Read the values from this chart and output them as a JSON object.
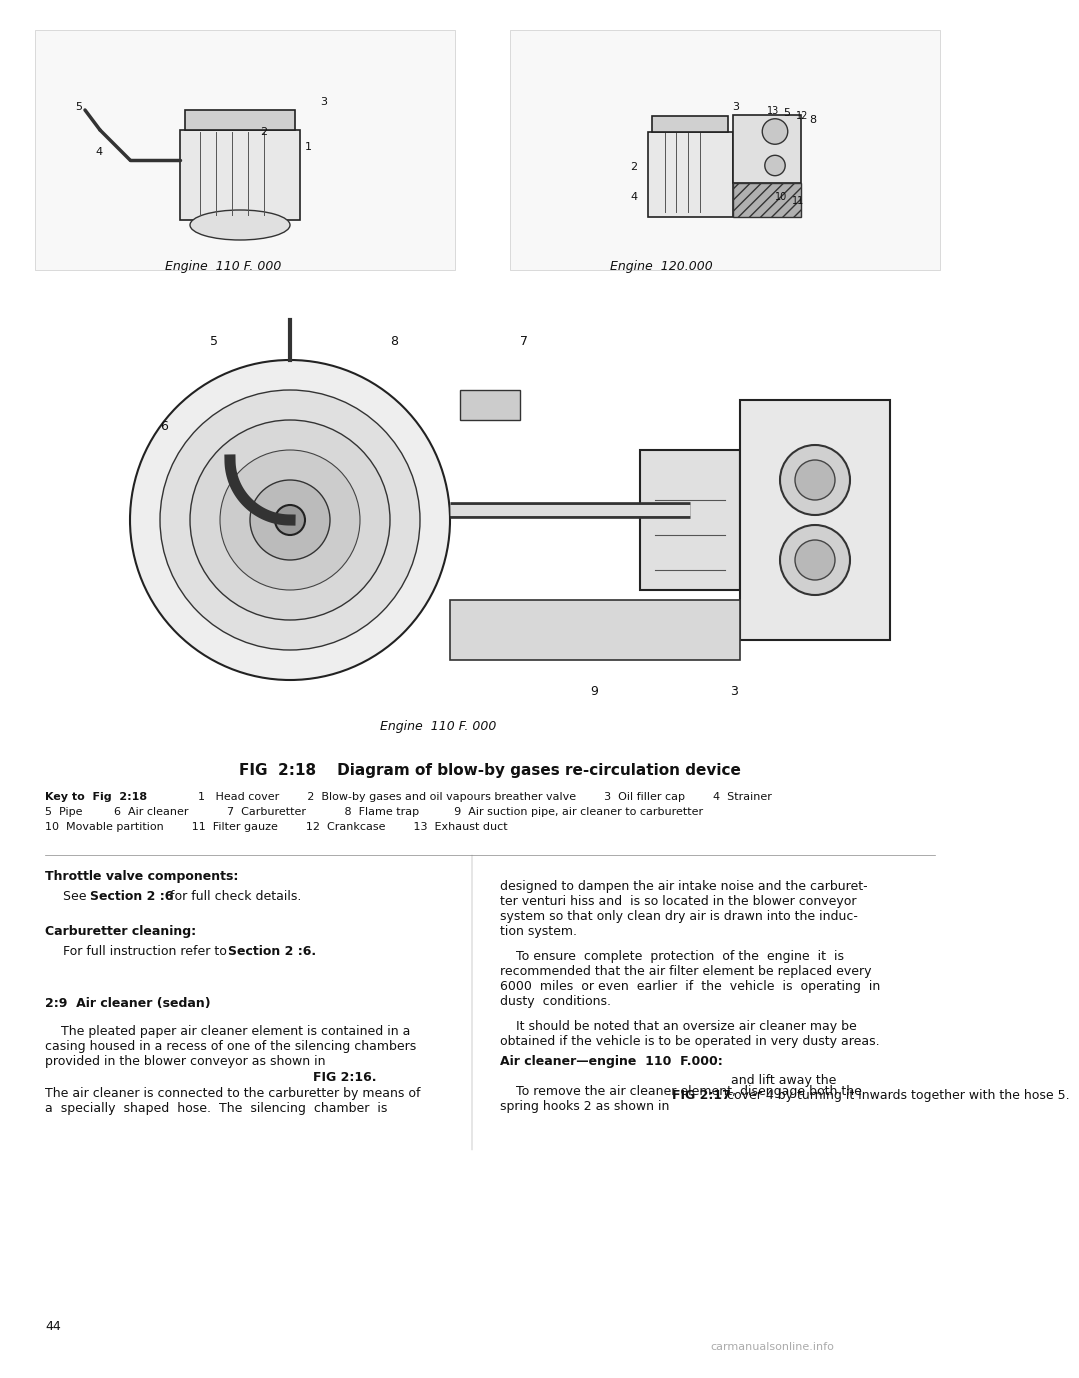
{
  "bg_color": "#ffffff",
  "page_number": "44",
  "fig_title": "FIG  2:18    Diagram of blow-by gases re-circulation device",
  "key_title": "Key to  Fig  2:18",
  "key_items_line1": "1   Head cover        2  Blow-by gases and oil vapours breather valve        3  Oil filler cap        4  Strainer",
  "key_items_line2": "5  Pipe         6  Air cleaner           7  Carburetter           8  Flame trap          9  Air suction pipe, air cleaner to carburetter",
  "key_items_line3": "10  Movable partition        11  Filter gauze        12  Crankcase        13  Exhaust duct",
  "engine_label_left": "Engine  110 F. 000",
  "engine_label_right": "Engine  120.000",
  "engine_label_bottom": "Engine  110 F. 000",
  "section_throttle_title": "Throttle valve components:",
  "section_throttle_body1": "See ",
  "section_throttle_bold1": "Section 2 :6",
  "section_throttle_body1_end": " for full check details.",
  "section_carb_title": "Carburetter cleaning:",
  "section_carb_body": "For full instruction refer to ",
  "section_carb_bold": "Section 2 :6.",
  "section_air_title": "2:9  Air cleaner (sedan)",
  "section_air_body": "    The pleated paper air cleaner element is contained in a casing housed in a recess of one of the silencing chambers provided in the blower conveyor as shown in ",
  "section_air_bold1": "FIG 2:16.",
  "section_air_body2": "\nThe air cleaner is connected to the carburetter by means of a  specially  shaped  hose.  The  silencing  chamber  is",
  "right_col_body1": "designed to dampen the air intake noise and the carburet-\nter venturi hiss and  is so located in the blower conveyor\nsystem so that only clean dry air is drawn into the induc-\ntion system.",
  "right_col_body2": "    To ensure  complete  protection  of the  engine  it  is\nrecommended that the air filter element be replaced every\n6000  miles  or even  earlier  if  the  vehicle  is  operating  in\ndusty  conditions.",
  "right_col_body3": "    It should be noted that an oversize air cleaner may be\nobtained if the vehicle is to be operated in very dusty areas.",
  "air_cleaner_title": "Air cleaner—engine  110  F.000:",
  "air_cleaner_body": "    To remove the air cleaner element, disengage both the\nspring hooks 2 as shown in ",
  "air_cleaner_bold": "FIG 2:17",
  "air_cleaner_body2": " and lift away the\ncover 4 by turning it inwards together with the hose 5.",
  "watermark": "carmanualsonline.info",
  "font_size_body": 9,
  "font_size_key": 8,
  "font_size_fig_title": 10,
  "font_size_section_title": 9,
  "font_size_page": 9
}
